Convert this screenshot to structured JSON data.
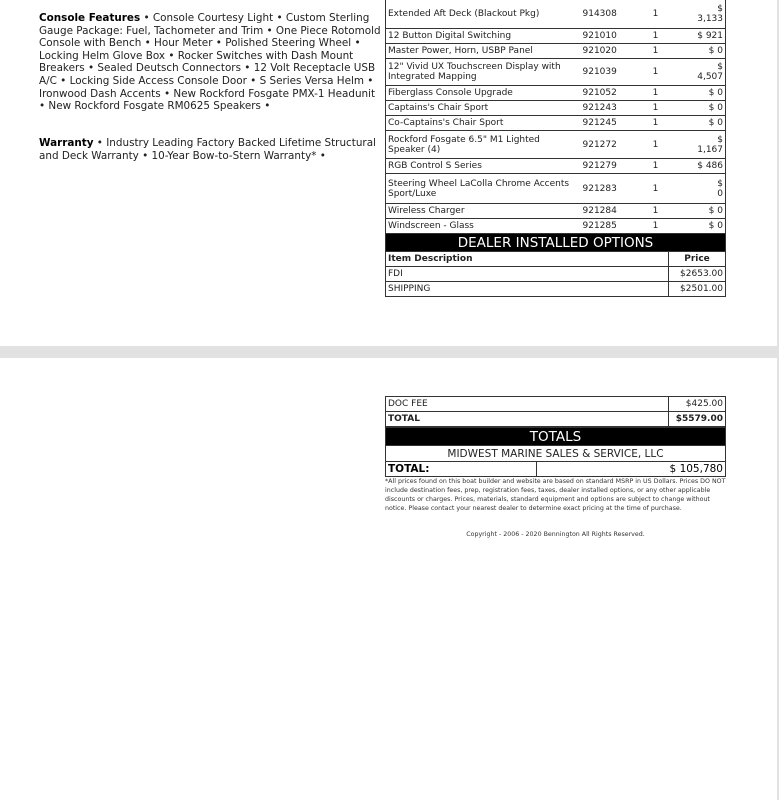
{
  "left": {
    "console_heading": "Console Features",
    "console_text": " • Console Courtesy Light • Custom Sterling Gauge Package: Fuel, Tachometer and Trim • One Piece Rotomold Console with Bench • Hour Meter • Polished Steering Wheel • Locking Helm Glove Box • Rocker Switches with Dash Mount Breakers • Sealed Deutsch Connectors • 12 Volt Receptacle USB A/C • Locking Side Access Console Door • S Series Versa Helm • Ironwood Dash Accents • New Rockford Fosgate PMX-1 Headunit • New Rockford Fosgate RM0625 Speakers •",
    "warranty_heading": "Warranty",
    "warranty_text": " • Industry Leading Factory Backed Lifetime Structural and Deck Warranty • 10-Year Bow-to-Stern Warranty* •"
  },
  "options": [
    {
      "desc": "Extended Aft Deck (Blackout Pkg)",
      "code": "914308",
      "qty": "1",
      "price": "$ 3,133"
    },
    {
      "desc": "12 Button Digital Switching",
      "code": "921010",
      "qty": "1",
      "price": "$ 921"
    },
    {
      "desc": "Master Power, Horn, USBP Panel",
      "code": "921020",
      "qty": "1",
      "price": "$ 0"
    },
    {
      "desc": "12\" Vivid UX Touchscreen Display with Integrated Mapping",
      "code": "921039",
      "qty": "1",
      "price": "$ 4,507"
    },
    {
      "desc": "Fiberglass Console Upgrade",
      "code": "921052",
      "qty": "1",
      "price": "$ 0"
    },
    {
      "desc": "Captains's Chair Sport",
      "code": "921243",
      "qty": "1",
      "price": "$ 0"
    },
    {
      "desc": "Co-Captains's Chair Sport",
      "code": "921245",
      "qty": "1",
      "price": "$ 0"
    },
    {
      "desc": "Rockford Fosgate 6.5\" M1 Lighted Speaker (4)",
      "code": "921272",
      "qty": "1",
      "price": "$ 1,167"
    },
    {
      "desc": "RGB Control S Series",
      "code": "921279",
      "qty": "1",
      "price": "$ 486"
    },
    {
      "desc": "Steering Wheel LaColla Chrome Accents Sport/Luxe",
      "code": "921283",
      "qty": "1",
      "price": "$ 0"
    },
    {
      "desc": "Wireless Charger",
      "code": "921284",
      "qty": "1",
      "price": "$ 0"
    },
    {
      "desc": "Windscreen - Glass",
      "code": "921285",
      "qty": "1",
      "price": "$ 0"
    }
  ],
  "dealer": {
    "title": "DEALER INSTALLED OPTIONS",
    "col_desc": "Item Description",
    "col_price": "Price",
    "items": [
      {
        "desc": "FDI",
        "price": "$2653.00"
      },
      {
        "desc": "SHIPPING",
        "price": "$2501.00"
      }
    ]
  },
  "fees": {
    "doc_label": "DOC FEE",
    "doc_value": "$425.00",
    "total_label": "TOTAL",
    "total_value": "$5579.00"
  },
  "totals": {
    "title": "TOTALS",
    "dealer_name": "MIDWEST MARINE SALES & SERVICE, LLC",
    "label": "TOTAL:",
    "value": "$ 105,780"
  },
  "disclaimer": "*All prices found on this boat builder and website are based on standard MSRP in US Dollars. Prices DO NOT include destination fees, prep, registration fees, taxes, dealer installed options, or any other applicable discounts or charges. Prices, materials, standard equipment and options are subject to change without notice. Please contact your nearest dealer to determine exact pricing at the time of purchase.",
  "copyright": "Copyright - 2006 - 2020 Bennington All Rights Reserved."
}
